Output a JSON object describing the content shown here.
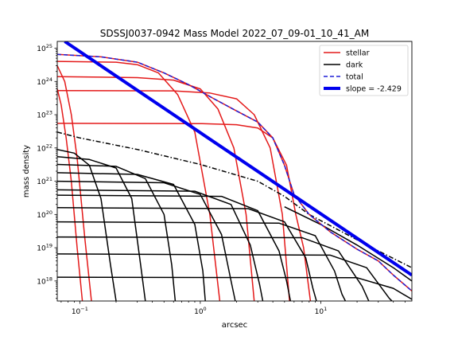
{
  "chart_data": {
    "type": "line",
    "title": "SDSSJ0037-0942 Mass Model 2022_07_09-01_10_41_AM",
    "xlabel": "arcsec",
    "ylabel": "mass density",
    "xscale": "log",
    "yscale": "log",
    "xlim": [
      0.065,
      57
    ],
    "ylim": [
      2.5e+17,
      1.6e+25
    ],
    "x_ticks": [
      {
        "value": 0.1,
        "base": "10",
        "exp": "−1"
      },
      {
        "value": 1,
        "base": "10",
        "exp": "0"
      },
      {
        "value": 10,
        "base": "10",
        "exp": "1"
      }
    ],
    "y_ticks": [
      {
        "value": 1e+18,
        "base": "10",
        "exp": "18"
      },
      {
        "value": 1e+19,
        "base": "10",
        "exp": "19"
      },
      {
        "value": 1e+20,
        "base": "10",
        "exp": "20"
      },
      {
        "value": 1e+21,
        "base": "10",
        "exp": "21"
      },
      {
        "value": 1e+22,
        "base": "10",
        "exp": "22"
      },
      {
        "value": 1e+23,
        "base": "10",
        "exp": "23"
      },
      {
        "value": 1e+24,
        "base": "10",
        "exp": "24"
      },
      {
        "value": 1e+25,
        "base": "10",
        "exp": "25"
      }
    ],
    "legend": {
      "position": "upper-right",
      "entries": [
        {
          "label": "stellar",
          "color": "#e41a1a",
          "style": "solid"
        },
        {
          "label": "dark",
          "color": "#000000",
          "style": "solid"
        },
        {
          "label": "total",
          "color": "#1f1fd6",
          "style": "dashed"
        },
        {
          "label": "slope = -2.429",
          "color": "#0000ee",
          "style": "thick"
        }
      ]
    },
    "series": [
      {
        "group": "stellar",
        "color": "#e41a1a",
        "style": "solid",
        "points": [
          [
            0.065,
            4e+24
          ],
          [
            0.2,
            3.8e+24
          ],
          [
            0.3,
            3.2e+24
          ],
          [
            0.45,
            1.8e+24
          ],
          [
            0.65,
            4e+23
          ],
          [
            0.9,
            3e+22
          ],
          [
            1.2,
            1e+20
          ],
          [
            1.45,
            2.5e+17
          ]
        ]
      },
      {
        "group": "stellar",
        "color": "#e41a1a",
        "style": "solid",
        "points": [
          [
            0.065,
            1.4e+24
          ],
          [
            0.3,
            1.3e+24
          ],
          [
            0.6,
            1.1e+24
          ],
          [
            1.0,
            6e+23
          ],
          [
            1.4,
            1.5e+23
          ],
          [
            1.9,
            1e+22
          ],
          [
            2.4,
            1e+20
          ],
          [
            2.8,
            2.5e+17
          ]
        ]
      },
      {
        "group": "stellar",
        "color": "#e41a1a",
        "style": "solid",
        "points": [
          [
            0.065,
            5.3e+23
          ],
          [
            0.6,
            5.2e+23
          ],
          [
            1.2,
            4.5e+23
          ],
          [
            2.0,
            3e+23
          ],
          [
            2.8,
            1e+23
          ],
          [
            3.8,
            1e+22
          ],
          [
            4.8,
            1e+20
          ],
          [
            5.5,
            2.5e+17
          ]
        ]
      },
      {
        "group": "stellar",
        "color": "#e41a1a",
        "style": "solid",
        "points": [
          [
            0.065,
            5.5e+22
          ],
          [
            1.0,
            5.4e+22
          ],
          [
            2.0,
            5e+22
          ],
          [
            3.0,
            4e+22
          ],
          [
            4.0,
            2e+22
          ],
          [
            5.2,
            3e+21
          ],
          [
            6.2,
            1e+20
          ],
          [
            7.2,
            1e+19
          ],
          [
            8.2,
            2.5e+17
          ]
        ]
      },
      {
        "group": "stellar",
        "color": "#e41a1a",
        "style": "solid",
        "points": [
          [
            0.065,
            3e+24
          ],
          [
            0.075,
            1e+24
          ],
          [
            0.085,
            1e+23
          ],
          [
            0.095,
            5e+21
          ],
          [
            0.11,
            2e+19
          ],
          [
            0.125,
            2.5e+17
          ]
        ]
      },
      {
        "group": "stellar",
        "color": "#e41a1a",
        "style": "solid",
        "points": [
          [
            0.065,
            6e+23
          ],
          [
            0.07,
            2e+23
          ],
          [
            0.077,
            2e+22
          ],
          [
            0.085,
            1e+21
          ],
          [
            0.095,
            1e+19
          ],
          [
            0.105,
            2.5e+17
          ]
        ]
      },
      {
        "group": "dark",
        "color": "#000000",
        "style": "dashdot",
        "points": [
          [
            0.065,
            3e+22
          ],
          [
            0.1,
            2e+22
          ],
          [
            0.3,
            9e+21
          ],
          [
            1,
            3.2e+21
          ],
          [
            3,
            1e+21
          ],
          [
            5,
            3.5e+20
          ],
          [
            8,
            1e+20
          ],
          [
            15,
            3e+19
          ],
          [
            30,
            8e+18
          ],
          [
            57,
            2.5e+18
          ]
        ]
      },
      {
        "group": "dark",
        "color": "#000000",
        "style": "solid",
        "points": [
          [
            0.065,
            9e+21
          ],
          [
            0.09,
            7e+21
          ],
          [
            0.12,
            3e+21
          ],
          [
            0.15,
            3e+20
          ],
          [
            0.18,
            3e+18
          ],
          [
            0.2,
            2.5e+17
          ]
        ]
      },
      {
        "group": "dark",
        "color": "#000000",
        "style": "solid",
        "points": [
          [
            0.065,
            5.5e+21
          ],
          [
            0.12,
            4.5e+21
          ],
          [
            0.2,
            2.5e+21
          ],
          [
            0.27,
            3e+20
          ],
          [
            0.32,
            3e+18
          ],
          [
            0.35,
            2.5e+17
          ]
        ]
      },
      {
        "group": "dark",
        "color": "#000000",
        "style": "solid",
        "points": [
          [
            0.065,
            3.2e+21
          ],
          [
            0.2,
            2.8e+21
          ],
          [
            0.35,
            1.2e+21
          ],
          [
            0.5,
            1e+20
          ],
          [
            0.58,
            3e+18
          ],
          [
            0.62,
            2.5e+17
          ]
        ]
      },
      {
        "group": "dark",
        "color": "#000000",
        "style": "solid",
        "points": [
          [
            0.065,
            1.8e+21
          ],
          [
            0.3,
            1.6e+21
          ],
          [
            0.6,
            8e+20
          ],
          [
            0.9,
            5e+19
          ],
          [
            1.05,
            2e+18
          ],
          [
            1.1,
            2.5e+17
          ]
        ]
      },
      {
        "group": "dark",
        "color": "#000000",
        "style": "solid",
        "points": [
          [
            0.065,
            1e+21
          ],
          [
            0.5,
            9e+20
          ],
          [
            1.0,
            4e+20
          ],
          [
            1.5,
            2.5e+19
          ],
          [
            1.8,
            1e+18
          ],
          [
            1.95,
            2.5e+17
          ]
        ]
      },
      {
        "group": "dark",
        "color": "#000000",
        "style": "solid",
        "points": [
          [
            0.065,
            5.5e+20
          ],
          [
            0.9,
            5e+20
          ],
          [
            1.8,
            2e+20
          ],
          [
            2.6,
            1.2e+19
          ],
          [
            3.1,
            8e+17
          ],
          [
            3.3,
            2.5e+17
          ]
        ]
      },
      {
        "group": "dark",
        "color": "#000000",
        "style": "solid",
        "points": [
          [
            0.065,
            3.8e+20
          ],
          [
            1.5,
            3.5e+20
          ],
          [
            3,
            1.3e+20
          ],
          [
            4.5,
            8e+18
          ],
          [
            5.2,
            1e+18
          ],
          [
            5.6,
            2.5e+17
          ]
        ]
      },
      {
        "group": "dark",
        "color": "#000000",
        "style": "solid",
        "points": [
          [
            0.065,
            1.6e+20
          ],
          [
            2.5,
            1.5e+20
          ],
          [
            5,
            6e+19
          ],
          [
            7.5,
            5e+18
          ],
          [
            8.6,
            6e+17
          ],
          [
            9.2,
            2.5e+17
          ]
        ]
      },
      {
        "group": "dark",
        "color": "#000000",
        "style": "solid",
        "points": [
          [
            0.065,
            6e+19
          ],
          [
            4.5,
            5.5e+19
          ],
          [
            9,
            2.3e+19
          ],
          [
            13,
            2e+18
          ],
          [
            15,
            4e+17
          ],
          [
            16,
            2.5e+17
          ]
        ]
      },
      {
        "group": "dark",
        "color": "#000000",
        "style": "solid",
        "points": [
          [
            0.065,
            2.1e+19
          ],
          [
            7,
            2e+19
          ],
          [
            14,
            8e+18
          ],
          [
            22,
            7e+17
          ],
          [
            25,
            2.5e+17
          ]
        ]
      },
      {
        "group": "dark",
        "color": "#000000",
        "style": "solid",
        "points": [
          [
            0.065,
            6.5e+18
          ],
          [
            12,
            6e+18
          ],
          [
            24,
            2.5e+18
          ],
          [
            37,
            3e+17
          ],
          [
            39,
            2.5e+17
          ]
        ]
      },
      {
        "group": "dark",
        "color": "#000000",
        "style": "solid",
        "points": [
          [
            0.065,
            1.3e+18
          ],
          [
            20,
            1.25e+18
          ],
          [
            40,
            6e+17
          ],
          [
            57,
            2.8e+17
          ]
        ]
      },
      {
        "group": "dark",
        "color": "#000000",
        "style": "solid",
        "points": [
          [
            5,
            1.7e+20
          ],
          [
            10,
            5e+19
          ],
          [
            20,
            1.2e+19
          ],
          [
            40,
            2.5e+18
          ],
          [
            57,
            1e+18
          ]
        ]
      },
      {
        "group": "total",
        "color": "#e41a1a",
        "style": "solid",
        "points": [
          [
            0.065,
            6.5e+24
          ],
          [
            0.15,
            5.5e+24
          ],
          [
            0.3,
            3.8e+24
          ],
          [
            0.5,
            1.8e+24
          ],
          [
            0.8,
            8e+23
          ],
          [
            1.3,
            3e+23
          ],
          [
            2,
            1.3e+23
          ],
          [
            3,
            6e+22
          ],
          [
            4,
            2e+22
          ],
          [
            5,
            3e+21
          ],
          [
            6,
            4e+20
          ],
          [
            8,
            1e+20
          ],
          [
            12,
            3e+19
          ],
          [
            20,
            9e+18
          ],
          [
            30,
            4e+18
          ],
          [
            40,
            1.5e+18
          ],
          [
            57,
            5e+17
          ]
        ]
      },
      {
        "group": "total",
        "color": "#1f1fd6",
        "style": "dashed",
        "points": [
          [
            0.065,
            6.5e+24
          ],
          [
            0.15,
            5.5e+24
          ],
          [
            0.3,
            3.8e+24
          ],
          [
            0.5,
            1.8e+24
          ],
          [
            0.8,
            8e+23
          ],
          [
            1.3,
            3e+23
          ],
          [
            2,
            1.3e+23
          ],
          [
            3,
            6e+22
          ],
          [
            4,
            2e+22
          ],
          [
            5,
            3e+21
          ],
          [
            6,
            4e+20
          ],
          [
            8,
            1e+20
          ],
          [
            12,
            3e+19
          ],
          [
            20,
            9e+18
          ],
          [
            30,
            4e+18
          ],
          [
            40,
            1.5e+18
          ],
          [
            57,
            5e+17
          ]
        ]
      },
      {
        "group": "slope",
        "color": "#0000ee",
        "style": "thick",
        "points": [
          [
            0.075,
            1.6e+25
          ],
          [
            57,
            1.5e+18
          ]
        ]
      }
    ]
  }
}
